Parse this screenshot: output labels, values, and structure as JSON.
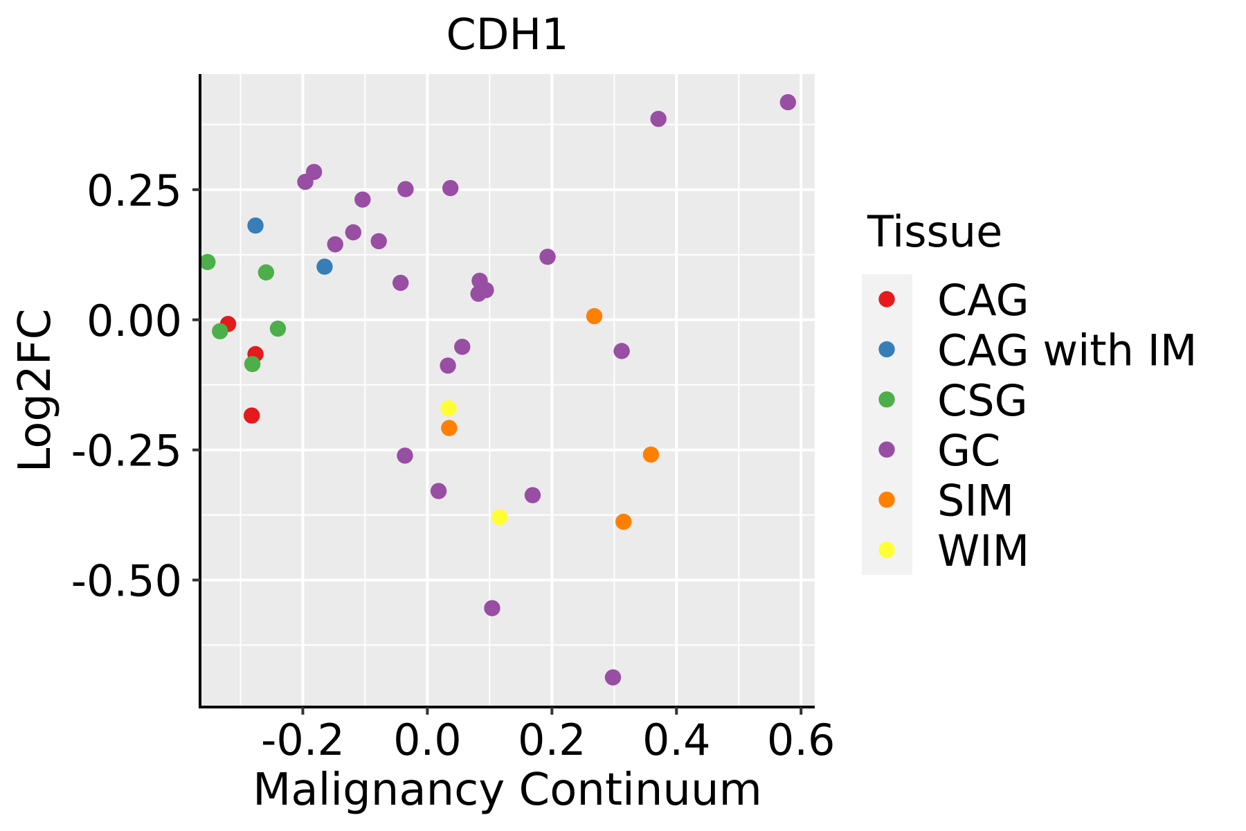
{
  "chart_data": {
    "type": "scatter",
    "title": "CDH1",
    "xlabel": "Malignancy Continuum",
    "ylabel": "Log2FC",
    "xlim": [
      -0.365,
      0.622
    ],
    "ylim": [
      -0.744,
      0.472
    ],
    "x_major_ticks": [
      -0.2,
      0.0,
      0.2,
      0.4,
      0.6
    ],
    "x_tick_labels": [
      "-0.2",
      "0.0",
      "0.2",
      "0.4",
      "0.6"
    ],
    "x_minor_gridlines": [
      -0.3,
      -0.1,
      0.1,
      0.3,
      0.5
    ],
    "y_major_ticks": [
      -0.5,
      -0.25,
      0.0,
      0.25
    ],
    "y_tick_labels": [
      "-0.50",
      "-0.25",
      "0.00",
      "0.25"
    ],
    "y_minor_gridlines": [
      -0.625,
      -0.375,
      -0.125,
      0.125,
      0.375
    ],
    "grid": true,
    "panel_background": "#EBEBEB",
    "legend": {
      "title": "Tissue",
      "position": "right",
      "key_background": "#F2F2F2",
      "entries": [
        {
          "label": "CAG",
          "color": "#E41A1C"
        },
        {
          "label": "CAG with IM",
          "color": "#377EB8"
        },
        {
          "label": "CSG",
          "color": "#4DAF4A"
        },
        {
          "label": "GC",
          "color": "#984EA3"
        },
        {
          "label": "SIM",
          "color": "#FF7F00"
        },
        {
          "label": "WIM",
          "color": "#FFFF33"
        }
      ]
    },
    "series": [
      {
        "name": "CAG",
        "color": "#E41A1C",
        "points": [
          {
            "x": -0.32,
            "y": -0.008
          },
          {
            "x": -0.276,
            "y": -0.066
          },
          {
            "x": -0.282,
            "y": -0.184
          }
        ]
      },
      {
        "name": "CAG with IM",
        "color": "#377EB8",
        "points": [
          {
            "x": -0.276,
            "y": 0.181
          },
          {
            "x": -0.165,
            "y": 0.102
          }
        ]
      },
      {
        "name": "CSG",
        "color": "#4DAF4A",
        "points": [
          {
            "x": -0.353,
            "y": 0.111
          },
          {
            "x": -0.259,
            "y": 0.091
          },
          {
            "x": -0.333,
            "y": -0.022
          },
          {
            "x": -0.24,
            "y": -0.017
          },
          {
            "x": -0.281,
            "y": -0.085
          }
        ]
      },
      {
        "name": "GC",
        "color": "#984EA3",
        "points": [
          {
            "x": 0.579,
            "y": 0.418
          },
          {
            "x": 0.371,
            "y": 0.386
          },
          {
            "x": -0.182,
            "y": 0.284
          },
          {
            "x": -0.196,
            "y": 0.265
          },
          {
            "x": -0.035,
            "y": 0.251
          },
          {
            "x": 0.037,
            "y": 0.253
          },
          {
            "x": -0.104,
            "y": 0.231
          },
          {
            "x": -0.119,
            "y": 0.168
          },
          {
            "x": -0.148,
            "y": 0.145
          },
          {
            "x": -0.078,
            "y": 0.151
          },
          {
            "x": 0.193,
            "y": 0.121
          },
          {
            "x": -0.043,
            "y": 0.071
          },
          {
            "x": 0.084,
            "y": 0.075
          },
          {
            "x": 0.094,
            "y": 0.057
          },
          {
            "x": 0.082,
            "y": 0.05
          },
          {
            "x": 0.056,
            "y": -0.052
          },
          {
            "x": 0.312,
            "y": -0.06
          },
          {
            "x": 0.033,
            "y": -0.088
          },
          {
            "x": -0.036,
            "y": -0.261
          },
          {
            "x": 0.018,
            "y": -0.329
          },
          {
            "x": 0.169,
            "y": -0.337
          },
          {
            "x": 0.104,
            "y": -0.554
          },
          {
            "x": 0.298,
            "y": -0.687
          }
        ]
      },
      {
        "name": "SIM",
        "color": "#FF7F00",
        "points": [
          {
            "x": 0.268,
            "y": 0.007
          },
          {
            "x": 0.035,
            "y": -0.208
          },
          {
            "x": 0.359,
            "y": -0.259
          },
          {
            "x": 0.315,
            "y": -0.388
          }
        ]
      },
      {
        "name": "WIM",
        "color": "#FFFF33",
        "points": [
          {
            "x": 0.034,
            "y": -0.17
          },
          {
            "x": 0.116,
            "y": -0.379
          }
        ]
      }
    ]
  }
}
